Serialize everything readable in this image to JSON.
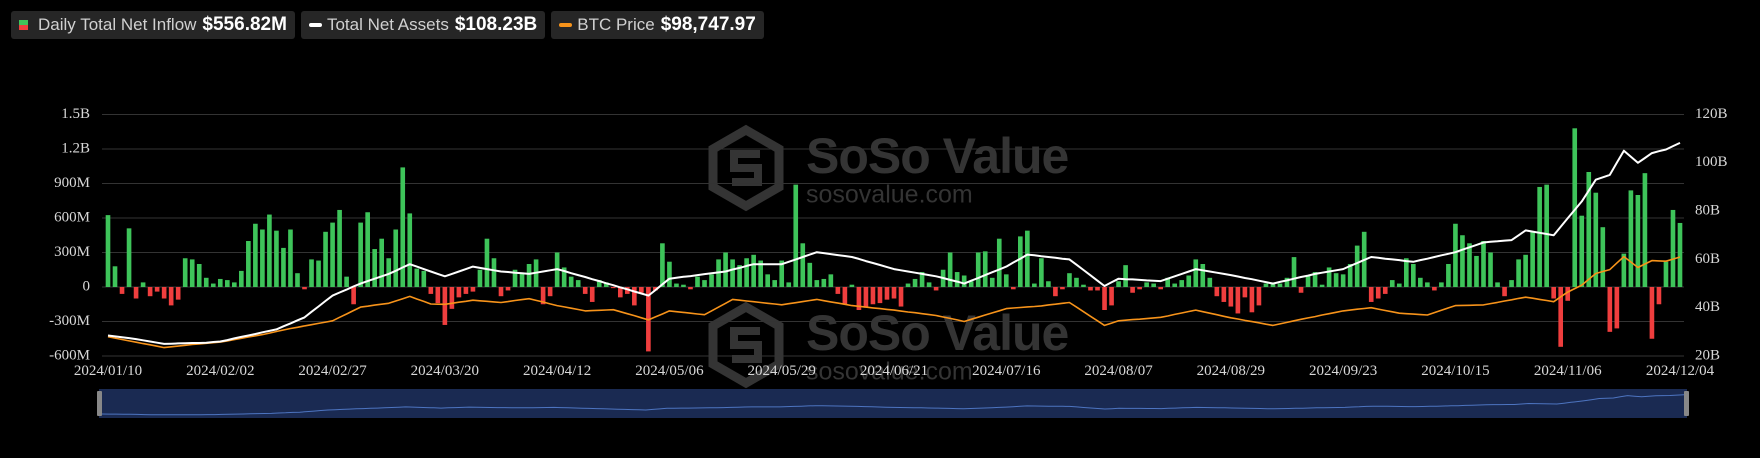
{
  "chart_data": {
    "type": "combo",
    "watermark": {
      "brand": "SoSo Value",
      "url": "sosovalue.com"
    },
    "categories": [
      "2024/01/10",
      null,
      null,
      null,
      null,
      null,
      null,
      null,
      null,
      null,
      null,
      null,
      null,
      null,
      null,
      null,
      "2024/02/02",
      null,
      null,
      null,
      null,
      null,
      null,
      null,
      null,
      null,
      null,
      null,
      null,
      null,
      null,
      null,
      "2024/02/27",
      null,
      null,
      null,
      null,
      null,
      null,
      null,
      null,
      null,
      null,
      null,
      null,
      null,
      null,
      null,
      "2024/03/20",
      null,
      null,
      null,
      null,
      null,
      null,
      null,
      null,
      null,
      null,
      null,
      null,
      null,
      null,
      null,
      "2024/04/12",
      null,
      null,
      null,
      null,
      null,
      null,
      null,
      null,
      null,
      null,
      null,
      null,
      null,
      null,
      null,
      "2024/05/06",
      null,
      null,
      null,
      null,
      null,
      null,
      null,
      null,
      null,
      null,
      null,
      null,
      null,
      null,
      null,
      "2024/05/29",
      null,
      null,
      null,
      null,
      null,
      null,
      null,
      null,
      null,
      null,
      null,
      null,
      null,
      null,
      null,
      "2024/06/21",
      null,
      null,
      null,
      null,
      null,
      null,
      null,
      null,
      null,
      null,
      null,
      null,
      null,
      null,
      null,
      "2024/07/16",
      null,
      null,
      null,
      null,
      null,
      null,
      null,
      null,
      null,
      null,
      null,
      null,
      null,
      null,
      null,
      "2024/08/07",
      null,
      null,
      null,
      null,
      null,
      null,
      null,
      null,
      null,
      null,
      null,
      null,
      null,
      null,
      null,
      "2024/08/29",
      null,
      null,
      null,
      null,
      null,
      null,
      null,
      null,
      null,
      null,
      null,
      null,
      null,
      null,
      null,
      "2024/09/23",
      null,
      null,
      null,
      null,
      null,
      null,
      null,
      null,
      null,
      null,
      null,
      null,
      null,
      null,
      null,
      "2024/10/15",
      null,
      null,
      null,
      null,
      null,
      null,
      null,
      null,
      null,
      null,
      null,
      null,
      null,
      null,
      null,
      "2024/11/06",
      null,
      null,
      null,
      null,
      null,
      null,
      null,
      null,
      null,
      null,
      null,
      null,
      null,
      null,
      null,
      "2024/12/04"
    ],
    "series": [
      {
        "name": "Daily Total Net Inflow",
        "latest_label": "$556.82M",
        "type": "bar",
        "colors": {
          "positive": "#3ec45a",
          "negative": "#ef3e3e"
        },
        "values": [
          625,
          180,
          -60,
          510,
          -100,
          40,
          -80,
          -40,
          -100,
          -160,
          -110,
          250,
          240,
          200,
          80,
          30,
          70,
          60,
          40,
          140,
          400,
          550,
          500,
          630,
          490,
          340,
          500,
          120,
          -20,
          240,
          230,
          480,
          560,
          670,
          90,
          -150,
          560,
          650,
          330,
          420,
          250,
          500,
          1040,
          640,
          160,
          140,
          -60,
          -140,
          -330,
          -190,
          -90,
          -60,
          -40,
          150,
          420,
          250,
          -80,
          -30,
          150,
          120,
          200,
          240,
          -150,
          -80,
          300,
          170,
          90,
          60,
          -60,
          -130,
          60,
          40,
          -10,
          -90,
          -60,
          -160,
          -50,
          -560,
          -30,
          380,
          220,
          30,
          20,
          -20,
          90,
          60,
          110,
          240,
          300,
          240,
          190,
          250,
          280,
          230,
          110,
          60,
          230,
          40,
          890,
          380,
          210,
          60,
          70,
          110,
          -60,
          -150,
          20,
          -200,
          -180,
          -150,
          -140,
          -110,
          -100,
          -170,
          30,
          70,
          130,
          40,
          -30,
          150,
          300,
          130,
          100,
          50,
          300,
          310,
          80,
          420,
          110,
          -20,
          440,
          490,
          30,
          250,
          50,
          -80,
          -20,
          120,
          80,
          20,
          -30,
          -30,
          -200,
          -160,
          50,
          190,
          -50,
          -20,
          40,
          30,
          -20,
          80,
          30,
          60,
          100,
          240,
          200,
          80,
          -80,
          -130,
          -170,
          -230,
          -90,
          -220,
          -160,
          30,
          40,
          30,
          80,
          260,
          -50,
          100,
          130,
          20,
          170,
          120,
          110,
          200,
          360,
          480,
          -130,
          -100,
          -60,
          60,
          30,
          250,
          200,
          80,
          40,
          -30,
          40,
          200,
          550,
          450,
          380,
          270,
          400,
          300,
          40,
          -80,
          60,
          240,
          280,
          480,
          870,
          890,
          -100,
          -520,
          -120,
          1380,
          620,
          1000,
          820,
          520,
          -390,
          -360,
          290,
          840,
          800,
          990,
          -450,
          -150,
          220,
          670,
          556.82
        ]
      },
      {
        "name": "Total Net Assets",
        "latest_label": "$108.23B",
        "type": "line",
        "color": "#ffffff",
        "axis": "y2",
        "values": [
          28.5,
          28.1,
          27.8,
          27.4,
          27.0,
          26.5,
          26.0,
          25.5,
          25.0,
          25.1,
          25.2,
          25.3,
          25.4,
          25.4,
          25.5,
          25.8,
          26.0,
          26.6,
          27.3,
          27.9,
          28.5,
          29.1,
          29.8,
          30.4,
          31.0,
          32.3,
          33.5,
          34.8,
          36.0,
          38.3,
          40.5,
          42.8,
          45.0,
          46.3,
          47.5,
          48.8,
          50.0,
          51.0,
          52.0,
          53.0,
          54.0,
          55.3,
          56.7,
          58.0,
          57.0,
          56.0,
          55.0,
          54.0,
          53.0,
          54.0,
          55.0,
          56.0,
          57.0,
          56.5,
          56.0,
          55.5,
          55.0,
          54.8,
          54.5,
          54.3,
          54.0,
          54.5,
          55.0,
          55.5,
          56.0,
          55.2,
          54.3,
          53.5,
          52.7,
          51.8,
          51.0,
          50.1,
          49.3,
          48.4,
          47.6,
          46.7,
          45.9,
          45.0,
          47.3,
          49.7,
          52.0,
          52.4,
          52.8,
          53.1,
          53.5,
          53.9,
          54.3,
          54.6,
          55.0,
          55.8,
          56.5,
          57.3,
          58.0,
          58.0,
          58.0,
          58.0,
          58.0,
          59.0,
          60.0,
          61.0,
          62.0,
          63.0,
          62.6,
          62.2,
          61.8,
          61.4,
          61.0,
          60.2,
          59.3,
          58.5,
          57.7,
          56.8,
          56.0,
          55.5,
          55.0,
          54.5,
          54.0,
          53.5,
          53.0,
          52.3,
          51.5,
          50.8,
          50.0,
          51.2,
          52.3,
          53.5,
          54.7,
          55.8,
          57.0,
          58.7,
          60.3,
          62.0,
          61.7,
          61.3,
          61.0,
          60.7,
          60.3,
          60.0,
          57.8,
          55.6,
          53.4,
          51.2,
          49.0,
          50.5,
          52.0,
          51.8,
          51.7,
          51.5,
          51.3,
          51.2,
          51.0,
          52.0,
          53.0,
          54.0,
          55.0,
          56.0,
          55.5,
          55.0,
          54.5,
          54.0,
          53.5,
          52.9,
          52.3,
          51.8,
          51.2,
          50.6,
          50.0,
          50.7,
          51.3,
          52.0,
          52.7,
          53.3,
          54.0,
          54.5,
          55.0,
          55.5,
          56.0,
          57.3,
          58.5,
          59.8,
          61.0,
          60.7,
          60.3,
          60.0,
          59.7,
          59.3,
          59.0,
          59.7,
          60.3,
          61.0,
          61.7,
          62.3,
          63.0,
          64.0,
          65.0,
          66.0,
          67.0,
          67.3,
          67.5,
          67.8,
          68.0,
          70.0,
          72.0,
          71.5,
          71.0,
          70.5,
          70.0,
          73.5,
          77.0,
          80.5,
          84.0,
          88.5,
          93.0,
          94.0,
          95.0,
          100.0,
          105.0,
          102.5,
          100.0,
          102.0,
          104.0,
          104.8,
          105.5,
          106.9,
          108.23
        ]
      },
      {
        "name": "BTC Price",
        "latest_label": "$98,747.97",
        "type": "line",
        "color": "#f7931a",
        "axis": "y3",
        "values": [
          46600,
          45700,
          44800,
          43900,
          43000,
          42100,
          41300,
          40400,
          39500,
          40000,
          40500,
          41000,
          41500,
          41900,
          42300,
          42700,
          43100,
          43900,
          44700,
          45600,
          46400,
          47200,
          48000,
          49000,
          50000,
          51000,
          52000,
          52800,
          53700,
          54500,
          55300,
          56200,
          57000,
          59300,
          61500,
          63800,
          66000,
          66600,
          67300,
          67900,
          68500,
          70000,
          71500,
          73000,
          71300,
          69700,
          68000,
          67900,
          67800,
          68500,
          69200,
          69800,
          70500,
          70100,
          69800,
          69400,
          69000,
          69600,
          70300,
          70900,
          71500,
          70400,
          69300,
          68100,
          67000,
          66100,
          65300,
          64400,
          63500,
          63700,
          63900,
          64100,
          64300,
          63000,
          61700,
          60400,
          59000,
          57600,
          59600,
          61500,
          63500,
          63000,
          62500,
          62000,
          61500,
          61000,
          63500,
          66000,
          68500,
          71000,
          70500,
          70000,
          69500,
          69000,
          68500,
          68000,
          67500,
          68200,
          68900,
          69600,
          70300,
          71000,
          70200,
          69400,
          68600,
          67800,
          67000,
          66500,
          66000,
          65500,
          65000,
          64500,
          64000,
          63400,
          62800,
          62300,
          61700,
          61100,
          60500,
          59500,
          58600,
          57600,
          56600,
          58000,
          59400,
          60800,
          62200,
          63600,
          65000,
          65400,
          65700,
          66100,
          66400,
          66800,
          67400,
          67900,
          68500,
          69000,
          66000,
          63000,
          60000,
          57000,
          54000,
          55500,
          57000,
          57400,
          57800,
          58100,
          58500,
          58900,
          59300,
          60200,
          61200,
          62100,
          63100,
          64000,
          63000,
          62000,
          61000,
          60000,
          59000,
          58200,
          57300,
          56500,
          55700,
          54800,
          54000,
          55000,
          56000,
          57000,
          58000,
          58900,
          59800,
          60800,
          61700,
          62600,
          63500,
          64000,
          64600,
          65100,
          65600,
          64700,
          63800,
          62900,
          62000,
          61700,
          61400,
          61100,
          60800,
          62400,
          63900,
          65500,
          67000,
          67100,
          67200,
          67300,
          67400,
          68300,
          69100,
          70000,
          70800,
          71700,
          72500,
          71800,
          71000,
          70300,
          69500,
          72700,
          75800,
          78100,
          80400,
          84200,
          88000,
          89300,
          90500,
          94800,
          99000,
          95500,
          91900,
          94200,
          96400,
          96200,
          96000,
          97400,
          98747.97
        ]
      }
    ],
    "ylim": [
      -600,
      1500
    ],
    "yticks": [
      {
        "value": 1500,
        "label": "1.5B"
      },
      {
        "value": 1200,
        "label": "1.2B"
      },
      {
        "value": 900,
        "label": "900M"
      },
      {
        "value": 600,
        "label": "600M"
      },
      {
        "value": 300,
        "label": "300M"
      },
      0,
      {
        "value": -300,
        "label": "-300M"
      },
      {
        "value": -600,
        "label": "-600M"
      }
    ],
    "y2lim": [
      20,
      120
    ],
    "y2ticks": [
      {
        "value": 120,
        "label": "120B"
      },
      {
        "value": 100,
        "label": "100B"
      },
      {
        "value": 80,
        "label": "80B"
      },
      {
        "value": 60,
        "label": "60B"
      },
      {
        "value": 40,
        "label": "40B"
      },
      {
        "value": 20,
        "label": "20B"
      }
    ],
    "y3lim": [
      34000,
      192000
    ],
    "grid": true,
    "grid_color": "#333333",
    "navigator": true
  }
}
